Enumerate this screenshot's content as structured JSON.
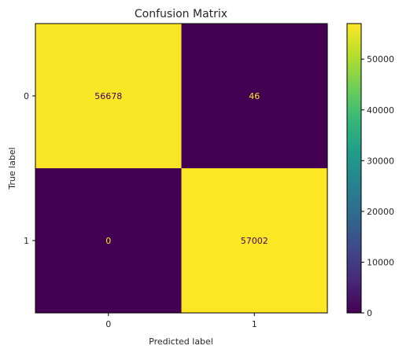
{
  "chart_data": {
    "type": "heatmap",
    "title": "Confusion Matrix",
    "xlabel": "Predicted label",
    "ylabel": "True label",
    "x_categories": [
      "0",
      "1"
    ],
    "y_categories": [
      "0",
      "1"
    ],
    "matrix": [
      [
        56678,
        46
      ],
      [
        0,
        57002
      ]
    ],
    "value_labels": [
      [
        "56678",
        "46"
      ],
      [
        "0",
        "57002"
      ]
    ],
    "colormap": "viridis",
    "colormap_stops": [
      "#440154",
      "#482878",
      "#3e4989",
      "#31688e",
      "#26828e",
      "#1f9e89",
      "#35b779",
      "#6ece58",
      "#b5de2b",
      "#fde725"
    ],
    "vmin": 0,
    "vmax": 57002,
    "colorbar_ticks": [
      0,
      10000,
      20000,
      30000,
      40000,
      50000
    ],
    "colorbar_tick_labels": [
      "0",
      "10000",
      "20000",
      "30000",
      "40000",
      "50000"
    ],
    "text_colors": {
      "on_dark": "#fde725",
      "on_light": "#440154"
    },
    "grid": false
  }
}
